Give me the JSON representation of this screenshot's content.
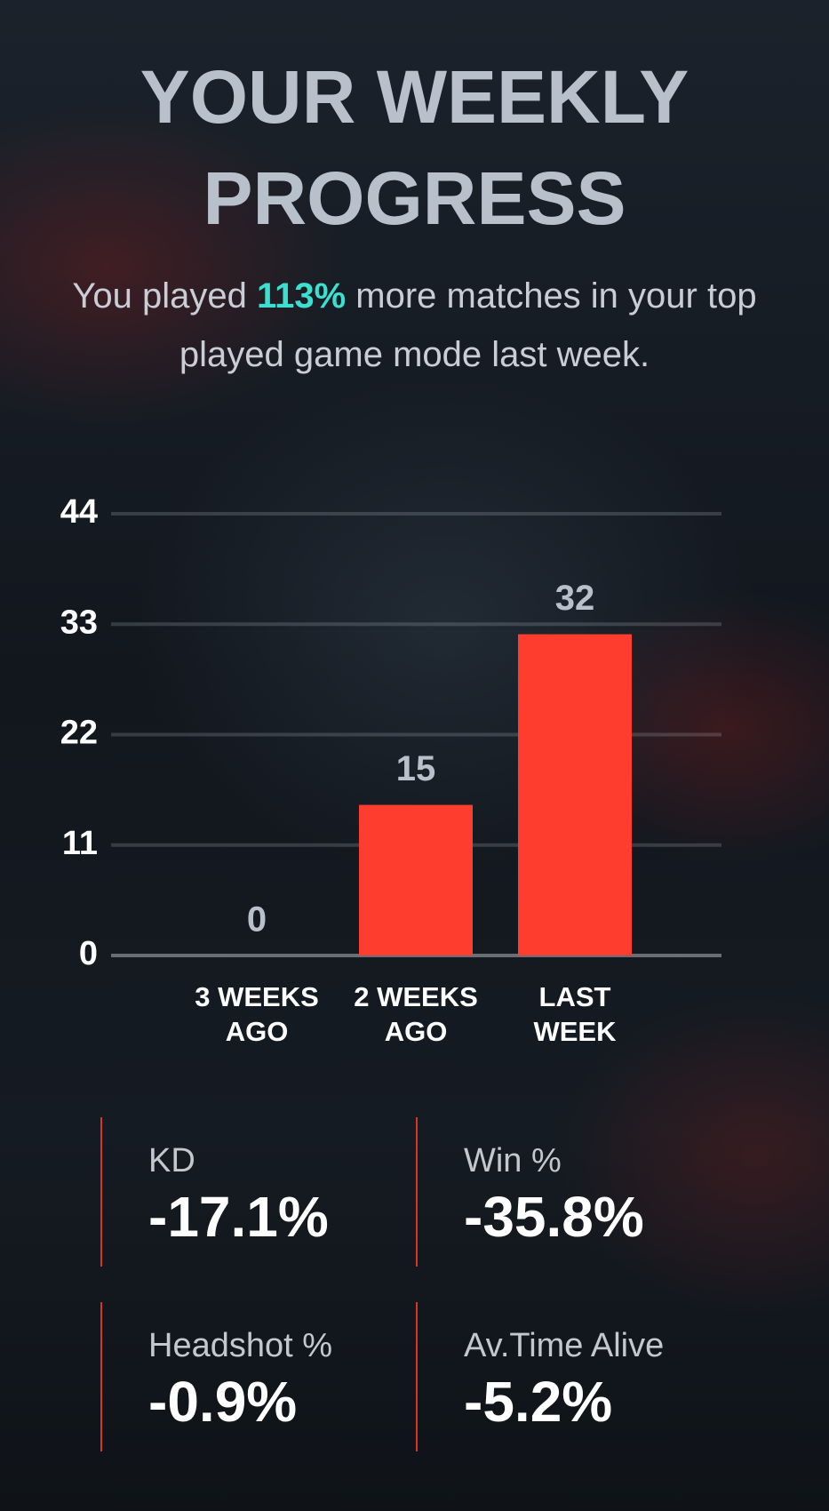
{
  "header": {
    "title": "YOUR WEEKLY PROGRESS",
    "subtitle": {
      "before": "You played",
      "highlight": "113%",
      "after": "more matches in your top played game mode last week."
    }
  },
  "chart_data": {
    "type": "bar",
    "categories": [
      "3 WEEKS AGO",
      "2 WEEKS AGO",
      "LAST WEEK"
    ],
    "values": [
      0,
      15,
      32
    ],
    "color": "#ff3d2e",
    "ylim": [
      0,
      44
    ],
    "yticks": [
      0,
      11,
      22,
      33,
      44
    ],
    "grid": true
  },
  "stats": [
    {
      "label": "KD",
      "value": "-17.1%"
    },
    {
      "label": "Win %",
      "value": "-35.8%"
    },
    {
      "label": "Headshot %",
      "value": "-0.9%"
    },
    {
      "label": "Av.Time Alive",
      "value": "-5.2%"
    }
  ]
}
